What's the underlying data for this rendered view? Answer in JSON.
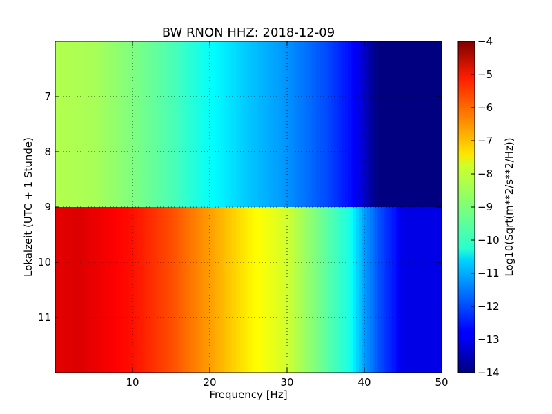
{
  "chart_data": {
    "type": "heatmap",
    "title": "BW RNON HHZ: 2018-12-09",
    "xlabel": "Frequency [Hz]",
    "ylabel": "Lokalzeit (UTC + 1 Stunde)",
    "colorbar_label": "Log10(Sqrt(m**2/s**2/Hz))",
    "xlim": [
      0,
      50
    ],
    "ylim": [
      12.0,
      6.0
    ],
    "x_ticks": [
      10,
      20,
      30,
      40,
      50
    ],
    "x_tick_labels": [
      "10",
      "20",
      "30",
      "40",
      "50"
    ],
    "y_ticks": [
      7,
      8,
      9,
      10,
      11
    ],
    "y_tick_labels": [
      "7",
      "8",
      "9",
      "10",
      "11"
    ],
    "colorbar_range": [
      -14,
      -4
    ],
    "colorbar_ticks": [
      -4,
      -5,
      -6,
      -7,
      -8,
      -9,
      -10,
      -11,
      -12,
      -13,
      -14
    ],
    "colorbar_tick_labels": [
      "−4",
      "−5",
      "−6",
      "−7",
      "−8",
      "−9",
      "−10",
      "−11",
      "−12",
      "−13",
      "−14"
    ],
    "colormap": "jet",
    "grid": true,
    "frequency_profiles": [
      {
        "time_range": [
          6.0,
          9.0
        ],
        "frequency": [
          0,
          5,
          10,
          15,
          20,
          25,
          30,
          35,
          38,
          40,
          41,
          42,
          50
        ],
        "log10_amplitude": [
          -8.5,
          -8.6,
          -9.0,
          -9.5,
          -10.2,
          -10.8,
          -11.3,
          -12.0,
          -12.6,
          -13.2,
          -13.8,
          -14.0,
          -14.0
        ]
      },
      {
        "time_range": [
          9.0,
          12.0
        ],
        "frequency": [
          0,
          3,
          10,
          15,
          20,
          25,
          30,
          35,
          38,
          40,
          42,
          44,
          45,
          50
        ],
        "log10_amplitude": [
          -5.0,
          -4.9,
          -5.4,
          -6.0,
          -6.8,
          -7.6,
          -8.2,
          -9.3,
          -10.0,
          -11.2,
          -12.0,
          -12.6,
          -13.0,
          -13.0
        ]
      }
    ]
  }
}
